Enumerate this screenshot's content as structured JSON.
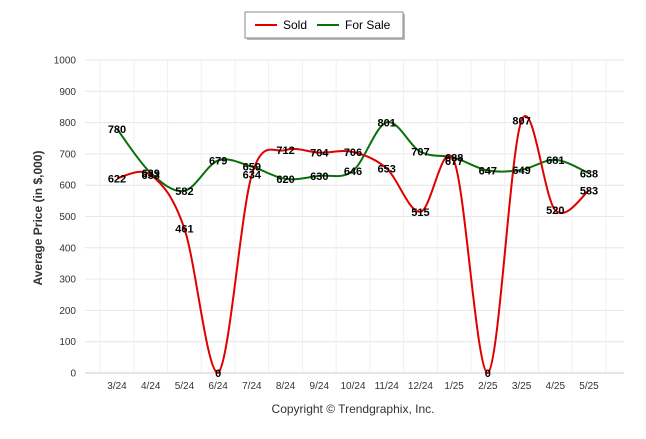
{
  "chart_data": {
    "type": "line",
    "categories": [
      "3/24",
      "4/24",
      "5/24",
      "6/24",
      "7/24",
      "8/24",
      "9/24",
      "10/24",
      "11/24",
      "12/24",
      "1/25",
      "2/25",
      "3/25",
      "4/25",
      "5/25"
    ],
    "series": [
      {
        "name": "Sold",
        "color": "#e00000",
        "values": [
          622,
          633,
          461,
          0,
          634,
          712,
          704,
          706,
          653,
          515,
          677,
          0,
          807,
          520,
          583
        ]
      },
      {
        "name": "For Sale",
        "color": "#0a6e0a",
        "values": [
          780,
          639,
          582,
          679,
          659,
          620,
          630,
          646,
          801,
          707,
          688,
          647,
          649,
          681,
          638
        ]
      }
    ],
    "ylabel": "Average Price (in $,000)",
    "xlabel": "",
    "ylim": [
      0,
      1000
    ],
    "yticks": [
      0,
      100,
      200,
      300,
      400,
      500,
      600,
      700,
      800,
      900,
      1000
    ],
    "grid": true,
    "legend_position": "top-center"
  },
  "footer": {
    "copyright": "Copyright © Trendgraphix, Inc."
  }
}
